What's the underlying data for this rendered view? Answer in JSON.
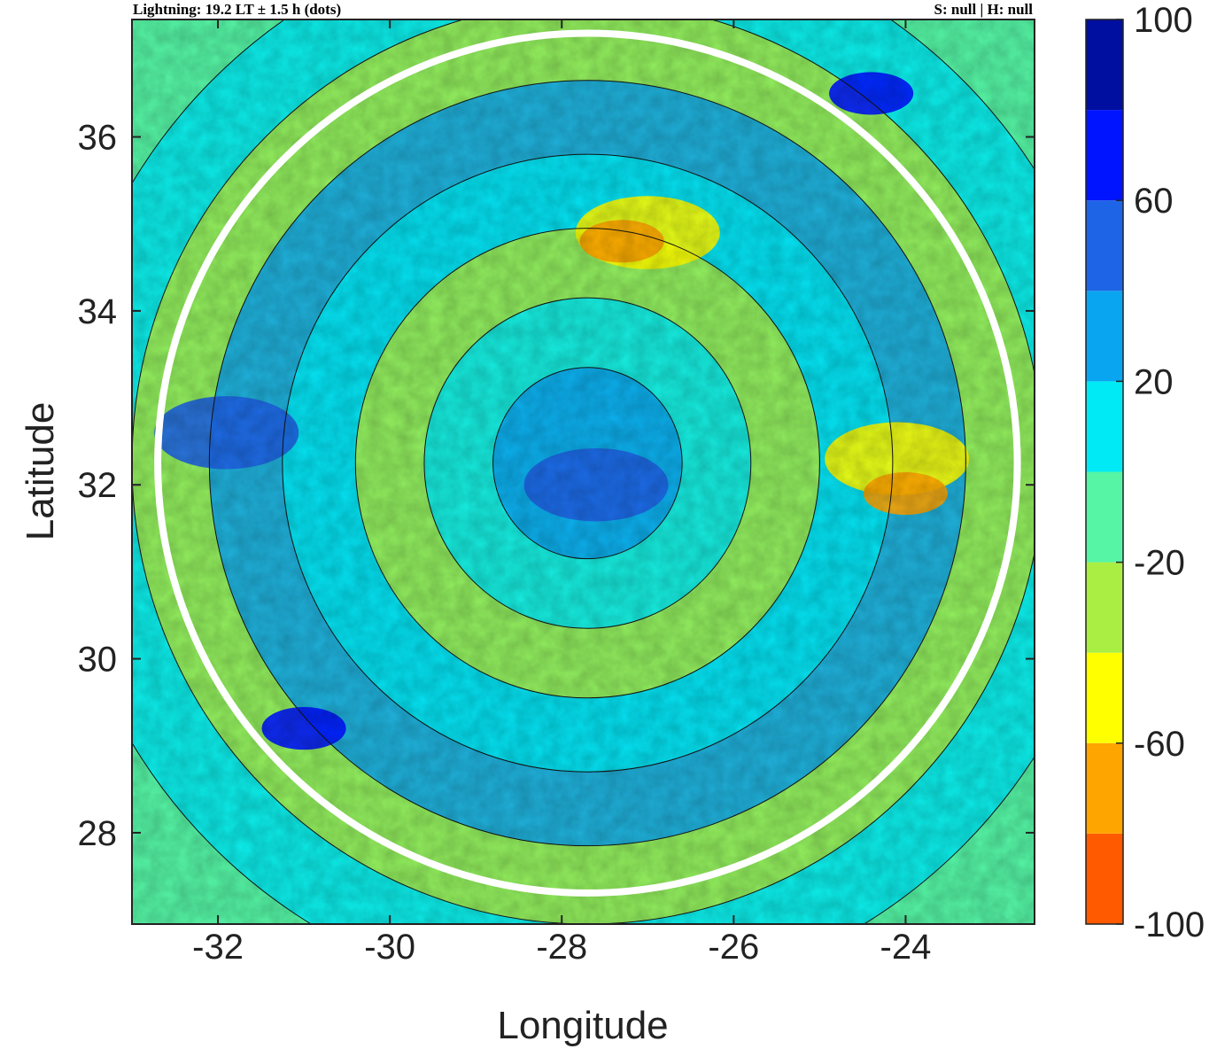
{
  "header": {
    "left": "Lightning: 19.2 LT ± 1.5 h (dots)",
    "right": "S: null | H: null"
  },
  "chart_data": {
    "type": "heatmap",
    "title": "",
    "xlabel": "Longitude",
    "ylabel": "Latitude",
    "xlim": [
      -33.0,
      -22.5
    ],
    "ylim": [
      26.95,
      37.35
    ],
    "xticks": [
      -32,
      -30,
      -28,
      -26,
      -24
    ],
    "yticks": [
      28,
      30,
      32,
      34,
      36
    ],
    "xtick_labels": [
      "-32",
      "-30",
      "-28",
      "-26",
      "-24"
    ],
    "ytick_labels": [
      "28",
      "30",
      "32",
      "34",
      "36"
    ],
    "colorbar": {
      "range": [
        -100,
        100
      ],
      "tick_values": [
        100,
        60,
        20,
        -20,
        -60,
        -100
      ],
      "tick_labels": [
        "100",
        "60",
        "20",
        "-20",
        "-60",
        "-100"
      ],
      "levels": [
        -100,
        -80,
        -60,
        -40,
        -20,
        0,
        20,
        40,
        60,
        80,
        100
      ],
      "colors": [
        "#ff5a00",
        "#ffa500",
        "#ffff00",
        "#aaee44",
        "#55f5a5",
        "#00eaf5",
        "#0aa5f0",
        "#1e64e6",
        "#0014ff",
        "#000fa0"
      ]
    },
    "features": {
      "center": {
        "lon": -27.7,
        "lat": 32.25
      },
      "white_circle_radius_deg": 5.0,
      "concentric_ring_radii_deg": [
        1.1,
        1.9,
        2.7,
        3.55,
        4.4,
        5.3,
        6.2
      ],
      "bands": [
        {
          "name": "yellow arc north",
          "value": -50,
          "lon": -27.0,
          "lat": 34.9
        },
        {
          "name": "orange patch north",
          "value": -70,
          "lon": -27.3,
          "lat": 34.8
        },
        {
          "name": "yellow arc east",
          "value": -50,
          "lon": -24.1,
          "lat": 32.3
        },
        {
          "name": "orange patch east",
          "value": -70,
          "lon": -24.0,
          "lat": 31.9
        },
        {
          "name": "blue arc west",
          "value": 50,
          "lon": -31.9,
          "lat": 32.6
        },
        {
          "name": "dark blue band southwest",
          "value": 65,
          "lon": -31.0,
          "lat": 29.2
        },
        {
          "name": "dark blue band northeast",
          "value": 70,
          "lon": -24.4,
          "lat": 36.5
        },
        {
          "name": "blue core",
          "value": 45,
          "lon": -27.6,
          "lat": 32.0
        }
      ]
    },
    "grid": false
  }
}
